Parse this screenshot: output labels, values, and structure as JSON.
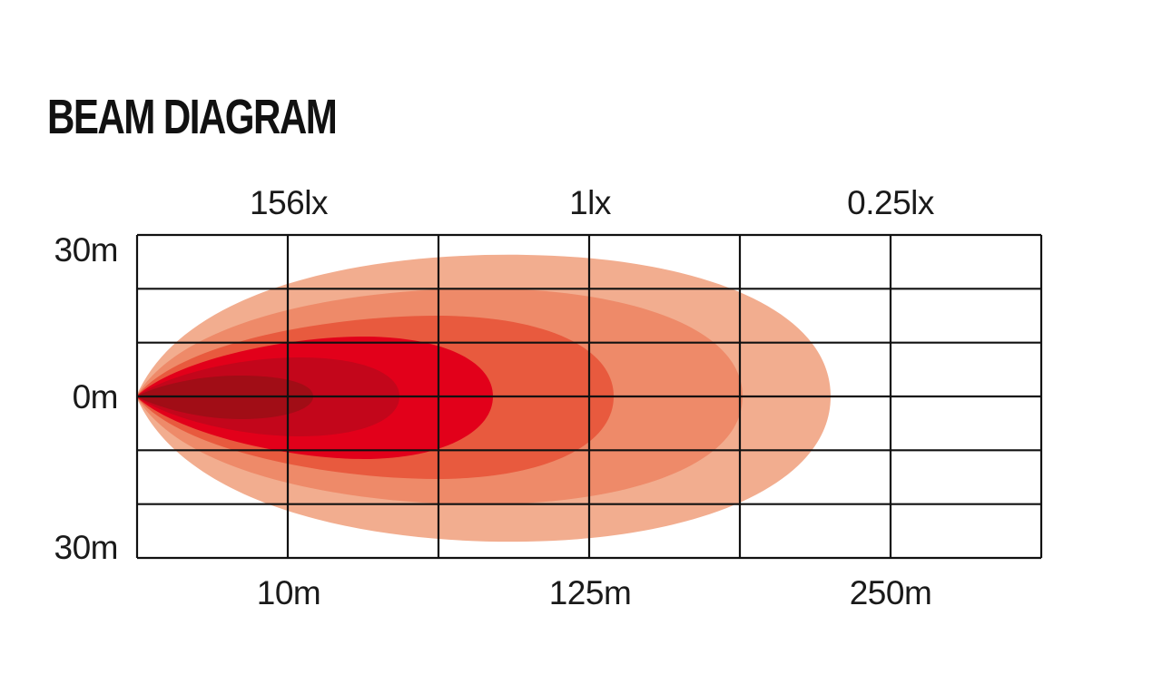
{
  "title": "BEAM DIAGRAM",
  "top_labels": [
    "156lx",
    "1lx",
    "0.25lx"
  ],
  "bottom_labels": [
    "10m",
    "125m",
    "250m"
  ],
  "y_labels": {
    "top": "30m",
    "middle": "0m",
    "bottom": "30m"
  },
  "zone_colors": [
    "#f2ad8f",
    "#ee8a69",
    "#e85a3e",
    "#e2001a",
    "#c3061b",
    "#a10d16"
  ],
  "grid_color": "#111111"
}
